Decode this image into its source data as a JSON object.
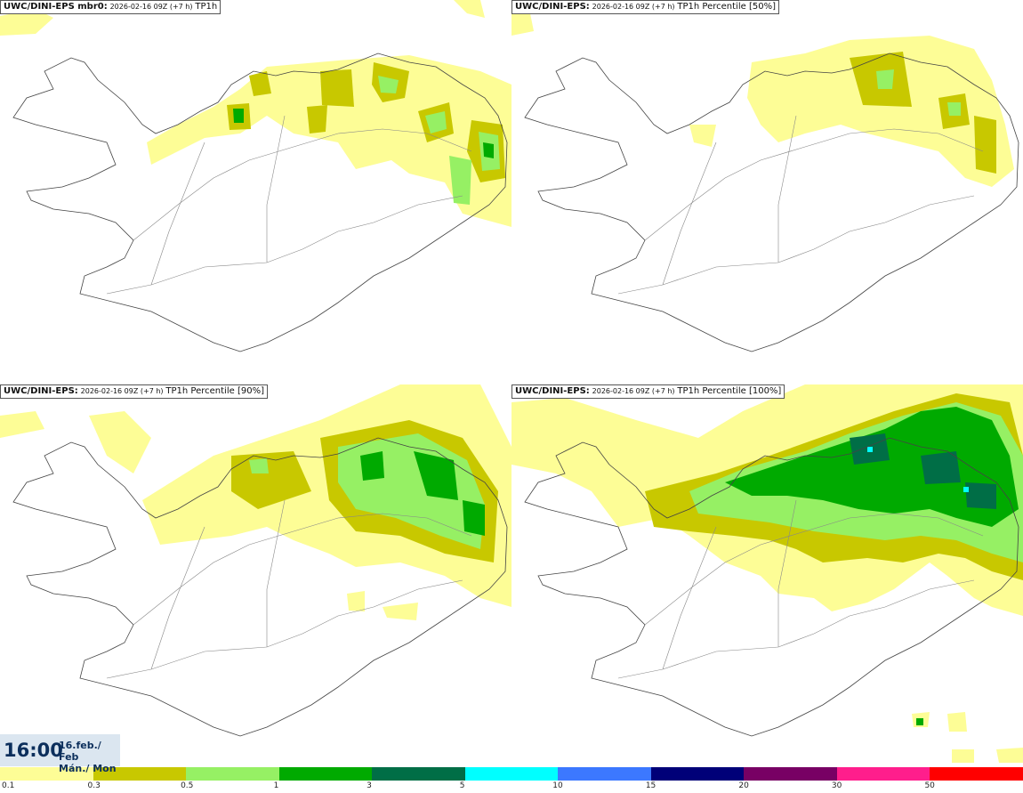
{
  "panels": [
    {
      "model": "UWC/DINI-EPS mbr0",
      "run": "2026-02-16 09Z (+7 h)",
      "field": "TP1h"
    },
    {
      "model": "UWC/DINI-EPS",
      "run": "2026-02-16 09Z (+7 h)",
      "field": "TP1h Percentile [50%]"
    },
    {
      "model": "UWC/DINI-EPS",
      "run": "2026-02-16 09Z (+7 h)",
      "field": "TP1h Percentile [90%]"
    },
    {
      "model": "UWC/DINI-EPS",
      "run": "2026-02-16 09Z (+7 h)",
      "field": "TP1h Percentile [100%]"
    }
  ],
  "valid_time": {
    "time": "16:00",
    "date": "16.feb./ Feb",
    "weekday": "Mán./ Mon"
  },
  "legend": {
    "colors": [
      "#fdfd96",
      "#c8c800",
      "#96f064",
      "#00aa00",
      "#006e46",
      "#00ffff",
      "#3c78ff",
      "#000078",
      "#780064",
      "#ff1e8c",
      "#ff0000"
    ],
    "ticks": [
      "0.1",
      "0.3",
      "0.5",
      "1",
      "3",
      "5",
      "10",
      "15",
      "20",
      "30",
      "50"
    ]
  },
  "map_colors": {
    "coast": "#444444",
    "roads": "#888888"
  }
}
